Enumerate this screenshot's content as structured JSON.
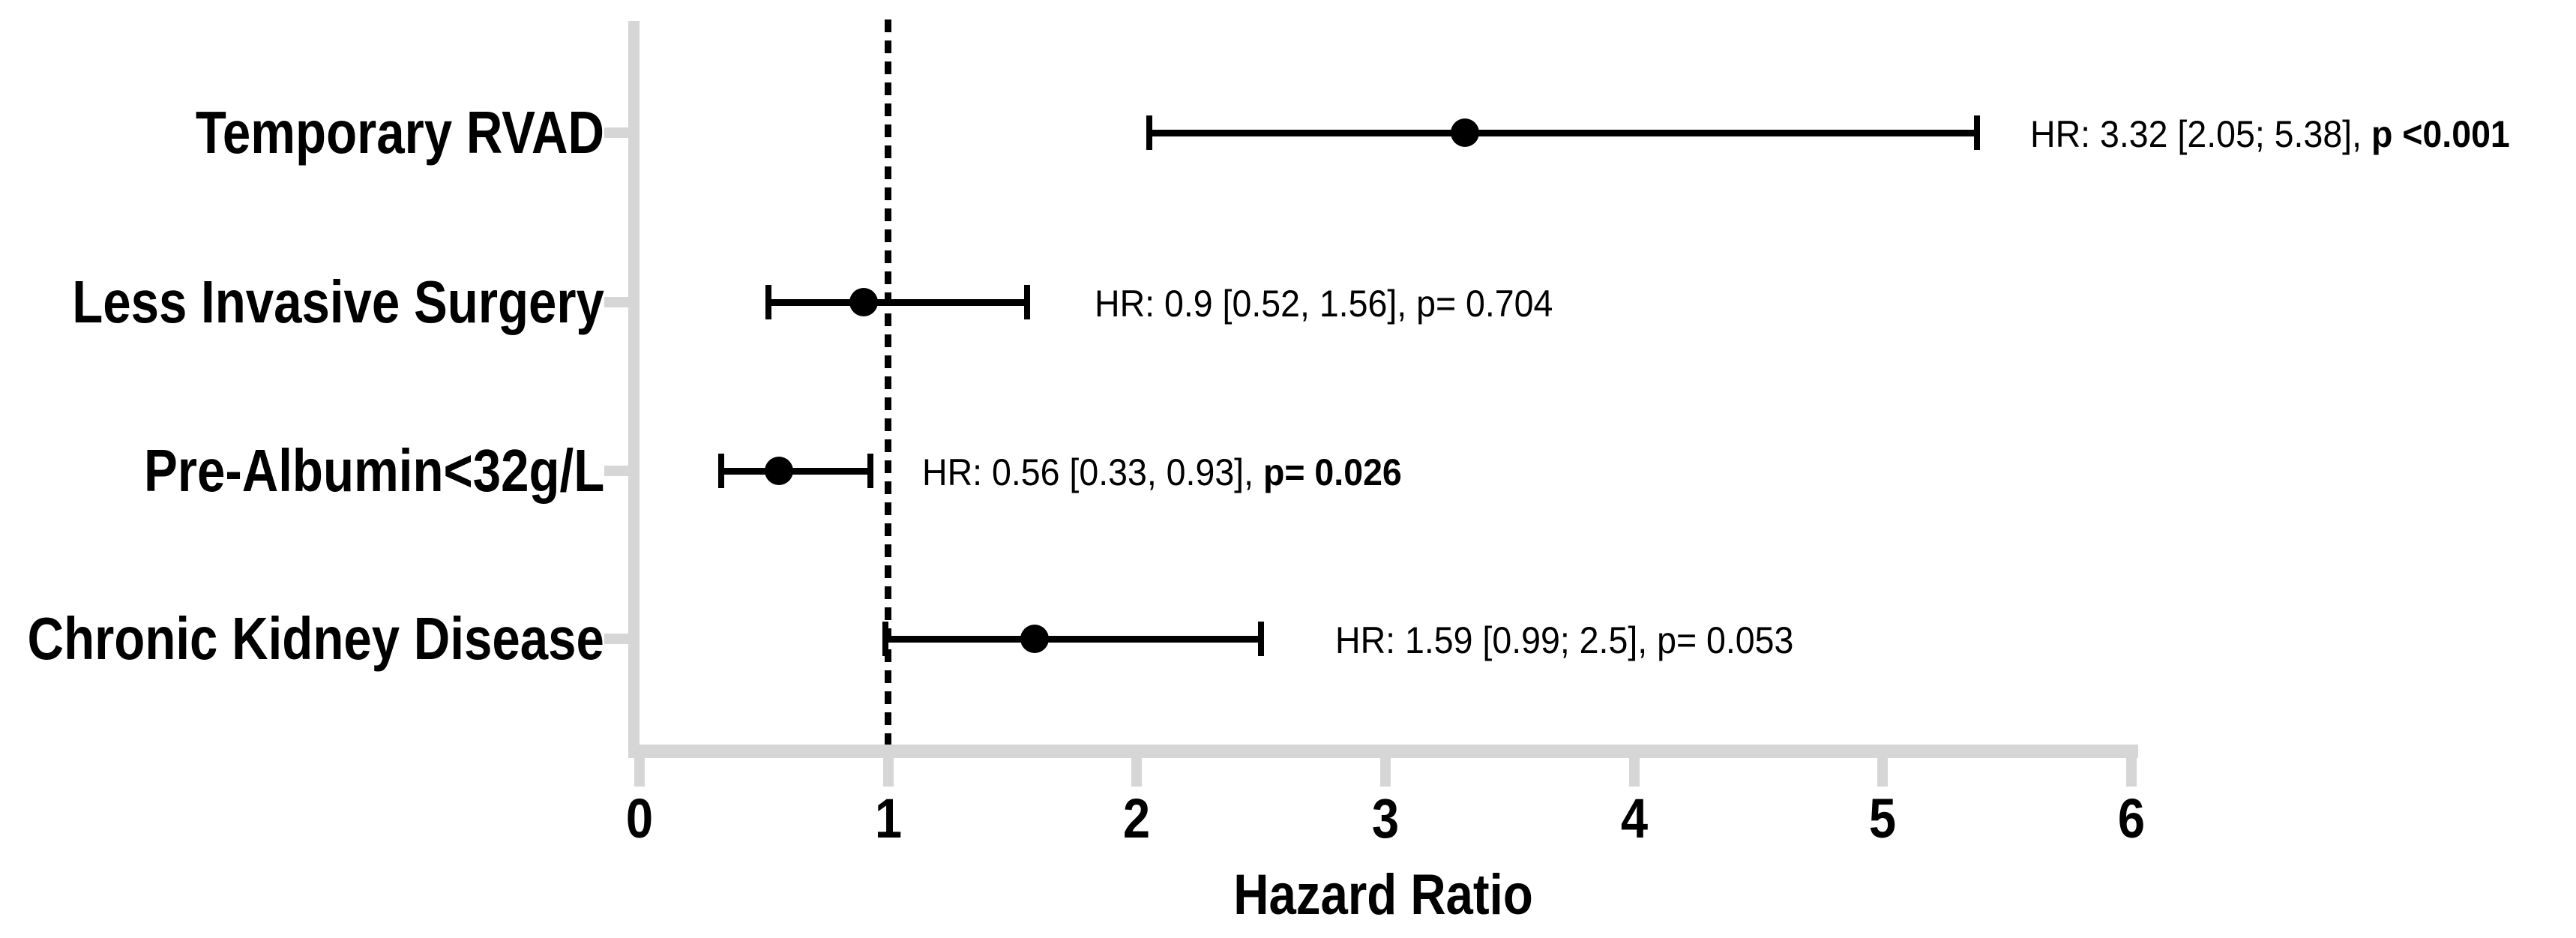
{
  "colors": {
    "axis": "#D6D6D6",
    "data": "#000000",
    "background": "#FFFFFF"
  },
  "chart_data": {
    "type": "forest",
    "title": "",
    "xlabel": "Hazard Ratio",
    "xlim": [
      0,
      6
    ],
    "xticks": [
      "0",
      "1",
      "2",
      "3",
      "4",
      "5",
      "6"
    ],
    "reference_line_x": 1,
    "grid": "off",
    "rows": [
      {
        "label": "Temporary RVAD",
        "hr": 3.32,
        "ci_low": 2.05,
        "ci_high": 5.38,
        "p": "<0.001",
        "annotation_regular": "HR: 3.32 [2.05; 5.38], ",
        "annotation_bold": "p <0.001"
      },
      {
        "label": "Less Invasive Surgery",
        "hr": 0.9,
        "ci_low": 0.52,
        "ci_high": 1.56,
        "p": "0.704",
        "annotation_regular": "HR: 0.9 [0.52, 1.56], p= 0.704",
        "annotation_bold": ""
      },
      {
        "label": "Pre-Albumin<32g/L",
        "hr": 0.56,
        "ci_low": 0.33,
        "ci_high": 0.93,
        "p": "0.026",
        "annotation_regular": "HR: 0.56 [0.33, 0.93], ",
        "annotation_bold": "p= 0.026"
      },
      {
        "label": "Chronic Kidney Disease",
        "hr": 1.59,
        "ci_low": 0.99,
        "ci_high": 2.5,
        "p": "0.053",
        "annotation_regular": "HR: 1.59 [0.99; 2.5], p= 0.053",
        "annotation_bold": ""
      }
    ]
  }
}
